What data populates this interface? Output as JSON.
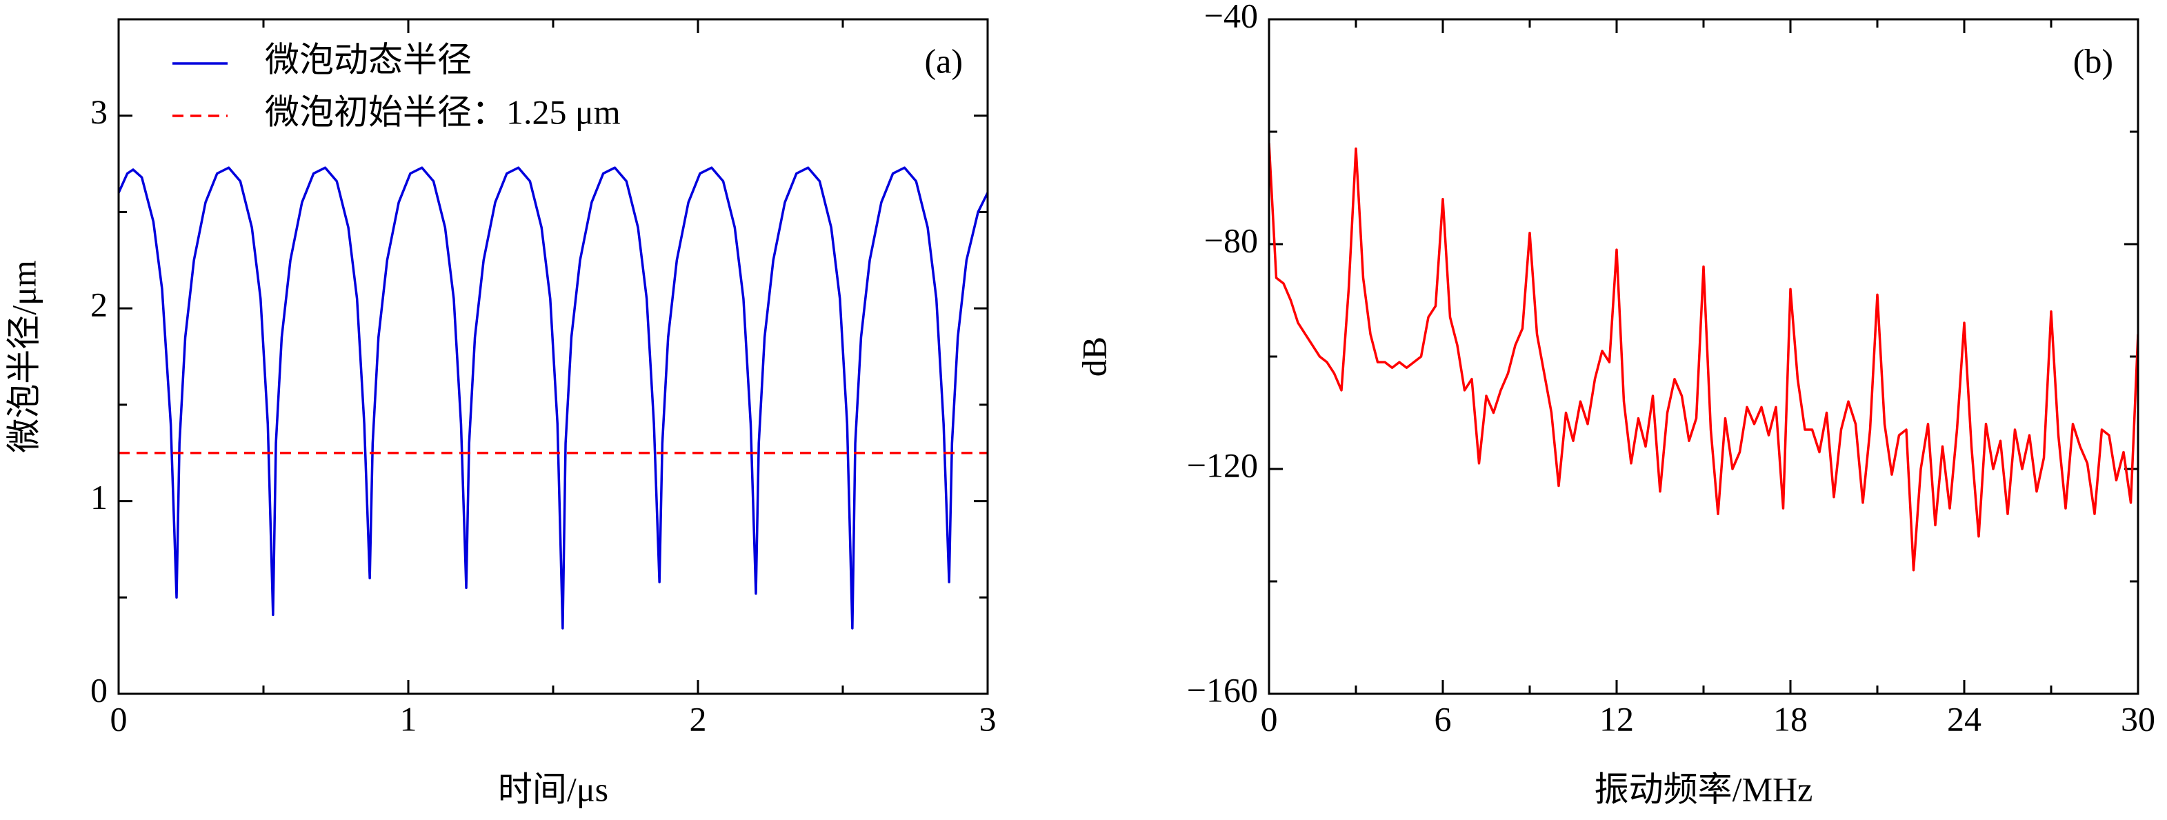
{
  "chart_data": [
    {
      "type": "line",
      "annotation": "(a)",
      "xlabel": "时间/μs",
      "ylabel": "微泡半径/μm",
      "xlim": [
        0,
        3
      ],
      "xticks": [
        0,
        1,
        2,
        3
      ],
      "xminorticks": [
        0.5,
        1.5,
        2.5
      ],
      "ylim": [
        0,
        3.5
      ],
      "yticks": [
        0,
        1,
        2,
        3
      ],
      "yminorticks": [
        0.5,
        1.5,
        2.5
      ],
      "legend": "upper left",
      "series": [
        {
          "name": "微泡动态半径",
          "color": "#0000dd",
          "x": [
            0,
            0.03,
            0.05,
            0.08,
            0.12,
            0.15,
            0.18,
            0.2,
            0.21,
            0.23,
            0.26,
            0.3,
            0.34,
            0.38,
            0.42,
            0.46,
            0.49,
            0.515,
            0.533,
            0.543,
            0.563,
            0.593,
            0.633,
            0.673,
            0.713,
            0.753,
            0.793,
            0.823,
            0.848,
            0.867,
            0.877,
            0.897,
            0.927,
            0.967,
            1.007,
            1.047,
            1.087,
            1.127,
            1.157,
            1.182,
            1.2,
            1.21,
            1.23,
            1.26,
            1.3,
            1.34,
            1.38,
            1.42,
            1.46,
            1.49,
            1.515,
            1.533,
            1.543,
            1.563,
            1.593,
            1.633,
            1.673,
            1.713,
            1.753,
            1.793,
            1.823,
            1.848,
            1.867,
            1.877,
            1.897,
            1.927,
            1.967,
            2.007,
            2.047,
            2.087,
            2.127,
            2.157,
            2.182,
            2.2,
            2.21,
            2.23,
            2.26,
            2.3,
            2.34,
            2.38,
            2.42,
            2.46,
            2.49,
            2.515,
            2.533,
            2.543,
            2.563,
            2.593,
            2.633,
            2.673,
            2.713,
            2.753,
            2.793,
            2.823,
            2.848,
            2.867,
            2.877,
            2.897,
            2.927,
            2.967,
            3.0
          ],
          "values": [
            2.6,
            2.7,
            2.72,
            2.68,
            2.45,
            2.1,
            1.4,
            0.5,
            1.3,
            1.85,
            2.25,
            2.55,
            2.7,
            2.73,
            2.66,
            2.42,
            2.05,
            1.4,
            0.41,
            1.3,
            1.85,
            2.25,
            2.55,
            2.7,
            2.73,
            2.66,
            2.42,
            2.05,
            1.4,
            0.6,
            1.3,
            1.85,
            2.25,
            2.55,
            2.7,
            2.73,
            2.66,
            2.42,
            2.05,
            1.4,
            0.55,
            1.3,
            1.85,
            2.25,
            2.55,
            2.7,
            2.73,
            2.66,
            2.42,
            2.05,
            1.4,
            0.34,
            1.3,
            1.85,
            2.25,
            2.55,
            2.7,
            2.73,
            2.66,
            2.42,
            2.05,
            1.4,
            0.58,
            1.3,
            1.85,
            2.25,
            2.55,
            2.7,
            2.73,
            2.66,
            2.42,
            2.05,
            1.4,
            0.52,
            1.3,
            1.85,
            2.25,
            2.55,
            2.7,
            2.73,
            2.66,
            2.42,
            2.05,
            1.4,
            0.34,
            1.3,
            1.85,
            2.25,
            2.55,
            2.7,
            2.73,
            2.66,
            2.42,
            2.05,
            1.4,
            0.58,
            1.3,
            1.85,
            2.25,
            2.5,
            2.6
          ]
        },
        {
          "name": "微泡初始半径：1.25 μm",
          "color": "#ff0000",
          "dash": true,
          "x": [
            0,
            3
          ],
          "values": [
            1.25,
            1.25
          ]
        }
      ]
    },
    {
      "type": "line",
      "annotation": "(b)",
      "xlabel": "振动频率/MHz",
      "ylabel": "dB",
      "xlim": [
        0,
        30
      ],
      "xticks": [
        0,
        6,
        12,
        18,
        24,
        30
      ],
      "xminorticks": [
        3,
        9,
        15,
        21,
        27
      ],
      "ylim": [
        -160,
        -40
      ],
      "yticks": [
        {
          "value": -160,
          "label": "−160"
        },
        {
          "value": -120,
          "label": "−120"
        },
        {
          "value": -80,
          "label": "−80"
        },
        {
          "value": -40,
          "label": "−40"
        }
      ],
      "yminorticks": [
        -140,
        -100,
        -60
      ],
      "x": [
        0,
        0.25,
        0.5,
        0.75,
        1,
        1.25,
        1.5,
        1.75,
        2,
        2.25,
        2.5,
        2.75,
        3,
        3.25,
        3.5,
        3.75,
        4,
        4.25,
        4.5,
        4.75,
        5,
        5.25,
        5.5,
        5.75,
        6,
        6.25,
        6.5,
        6.75,
        7,
        7.25,
        7.5,
        7.75,
        8,
        8.25,
        8.5,
        8.75,
        9,
        9.25,
        9.5,
        9.75,
        10,
        10.25,
        10.5,
        10.75,
        11,
        11.25,
        11.5,
        11.75,
        12,
        12.25,
        12.5,
        12.75,
        13,
        13.25,
        13.5,
        13.75,
        14,
        14.25,
        14.5,
        14.75,
        15,
        15.25,
        15.5,
        15.75,
        16,
        16.25,
        16.5,
        16.75,
        17,
        17.25,
        17.5,
        17.75,
        18,
        18.25,
        18.5,
        18.75,
        19,
        19.25,
        19.5,
        19.75,
        20,
        20.25,
        20.5,
        20.75,
        21,
        21.25,
        21.5,
        21.75,
        22,
        22.25,
        22.5,
        22.75,
        23,
        23.25,
        23.5,
        23.75,
        24,
        24.25,
        24.5,
        24.75,
        25,
        25.25,
        25.5,
        25.75,
        26,
        26.25,
        26.5,
        26.75,
        27,
        27.25,
        27.5,
        27.75,
        28,
        28.25,
        28.5,
        28.75,
        29,
        29.25,
        29.5,
        29.75,
        30
      ],
      "series": [
        {
          "color": "#ff0000",
          "values": [
            -62,
            -86,
            -87,
            -90,
            -94,
            -96,
            -98,
            -100,
            -101,
            -103,
            -106,
            -88,
            -63,
            -86,
            -96,
            -101,
            -101,
            -102,
            -101,
            -102,
            -101,
            -100,
            -93,
            -91,
            -72,
            -93,
            -98,
            -106,
            -104,
            -119,
            -107,
            -110,
            -106,
            -103,
            -98,
            -95,
            -78,
            -96,
            -103,
            -110,
            -123,
            -110,
            -115,
            -108,
            -112,
            -104,
            -99,
            -101,
            -81,
            -108,
            -119,
            -111,
            -116,
            -107,
            -124,
            -110,
            -104,
            -107,
            -115,
            -111,
            -84,
            -113,
            -128,
            -111,
            -120,
            -117,
            -109,
            -112,
            -109,
            -114,
            -109,
            -127,
            -88,
            -104,
            -113,
            -113,
            -117,
            -110,
            -125,
            -113,
            -108,
            -112,
            -126,
            -113,
            -89,
            -112,
            -121,
            -114,
            -113,
            -138,
            -120,
            -112,
            -130,
            -116,
            -127,
            -113,
            -94,
            -116,
            -132,
            -112,
            -120,
            -115,
            -128,
            -113,
            -120,
            -114,
            -124,
            -118,
            -92,
            -114,
            -127,
            -112,
            -116,
            -119,
            -128,
            -113,
            -114,
            -122,
            -117,
            -126,
            -96
          ]
        }
      ]
    }
  ]
}
